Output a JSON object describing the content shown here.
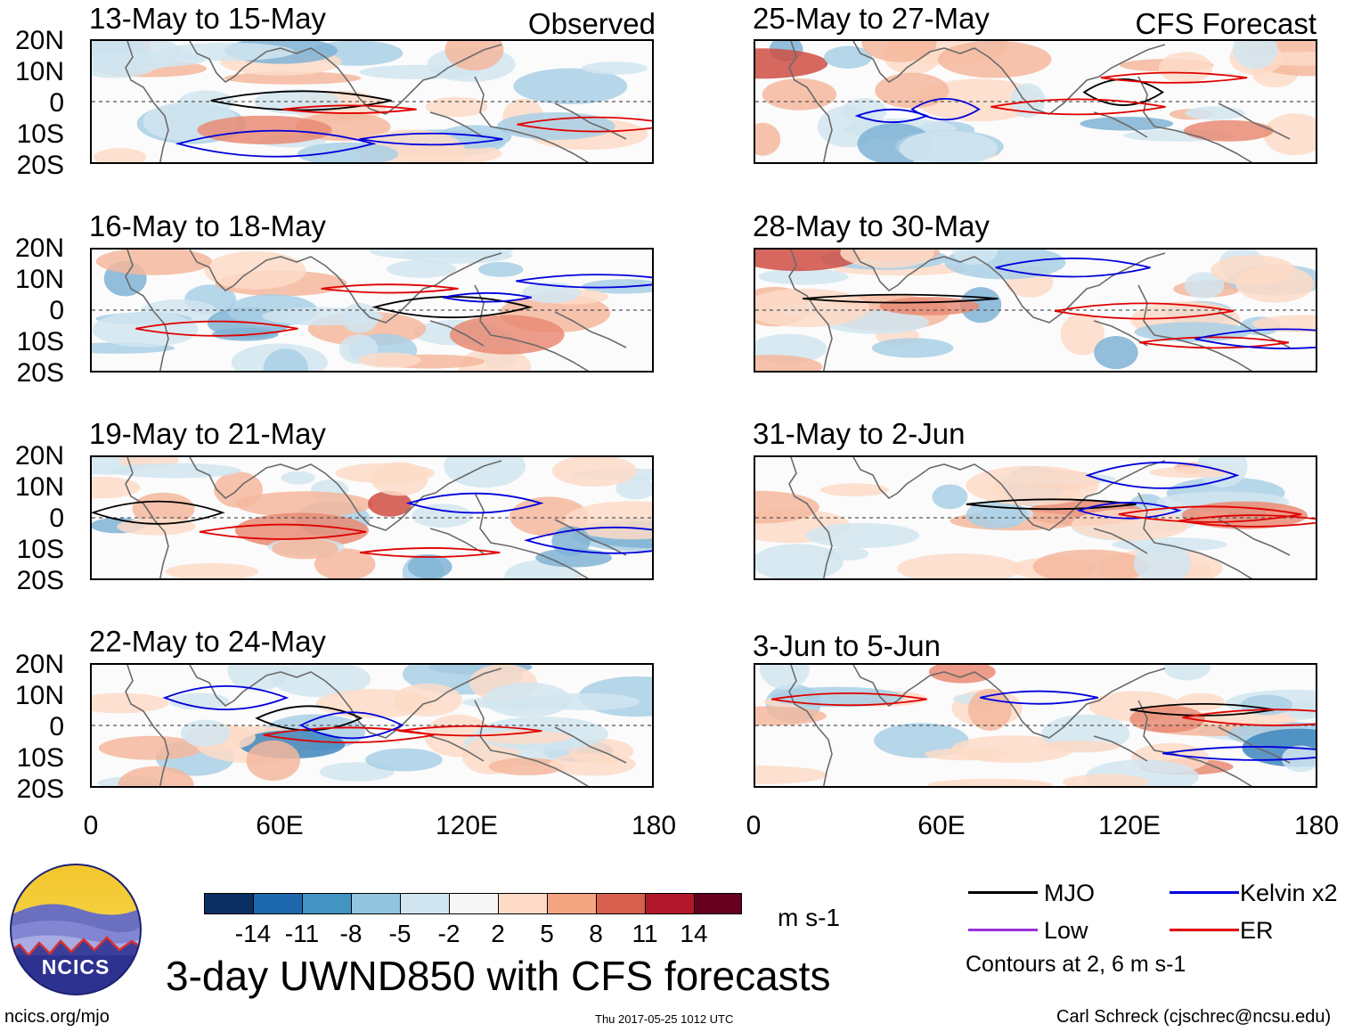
{
  "panels": [
    {
      "period": "13-May to 15-May",
      "corner": "Observed"
    },
    {
      "period": "16-May to 18-May",
      "corner": ""
    },
    {
      "period": "19-May to 21-May",
      "corner": ""
    },
    {
      "period": "22-May to 24-May",
      "corner": ""
    },
    {
      "period": "25-May to 27-May",
      "corner": "CFS Forecast"
    },
    {
      "period": "28-May to 30-May",
      "corner": ""
    },
    {
      "period": "31-May to 2-Jun",
      "corner": ""
    },
    {
      "period": "3-Jun to 5-Jun",
      "corner": ""
    }
  ],
  "lat_labels": [
    "20N",
    "10N",
    "0",
    "10S",
    "20S"
  ],
  "lon_labels": [
    "0",
    "60E",
    "120E",
    "180"
  ],
  "colorbar": {
    "colors": [
      "#0b2f63",
      "#1d68ad",
      "#4393c3",
      "#92c5de",
      "#d1e5f0",
      "#f7f7f7",
      "#fddbc7",
      "#f4a582",
      "#d6604d",
      "#b2182b",
      "#67001f"
    ],
    "labels": [
      "-14",
      "-11",
      "-8",
      "-5",
      "-2",
      "2",
      "5",
      "8",
      "11",
      "14"
    ],
    "units": "m s-1"
  },
  "title": "3-day UWND850 with CFS forecasts",
  "legend": {
    "items": [
      {
        "label": "MJO",
        "color": "#000000"
      },
      {
        "label": "Kelvin x2",
        "color": "#0000dd"
      },
      {
        "label": "Low",
        "color": "#9b30d9"
      },
      {
        "label": "ER",
        "color": "#e00000"
      }
    ],
    "note": "Contours at 2, 6 m s-1"
  },
  "logo_text": "NCICS",
  "footer": {
    "website": "ncics.org/mjo",
    "timestamp": "Thu 2017-05-25 1012 UTC",
    "credit": "Carl Schreck (cjschrec@ncsu.edu)"
  }
}
